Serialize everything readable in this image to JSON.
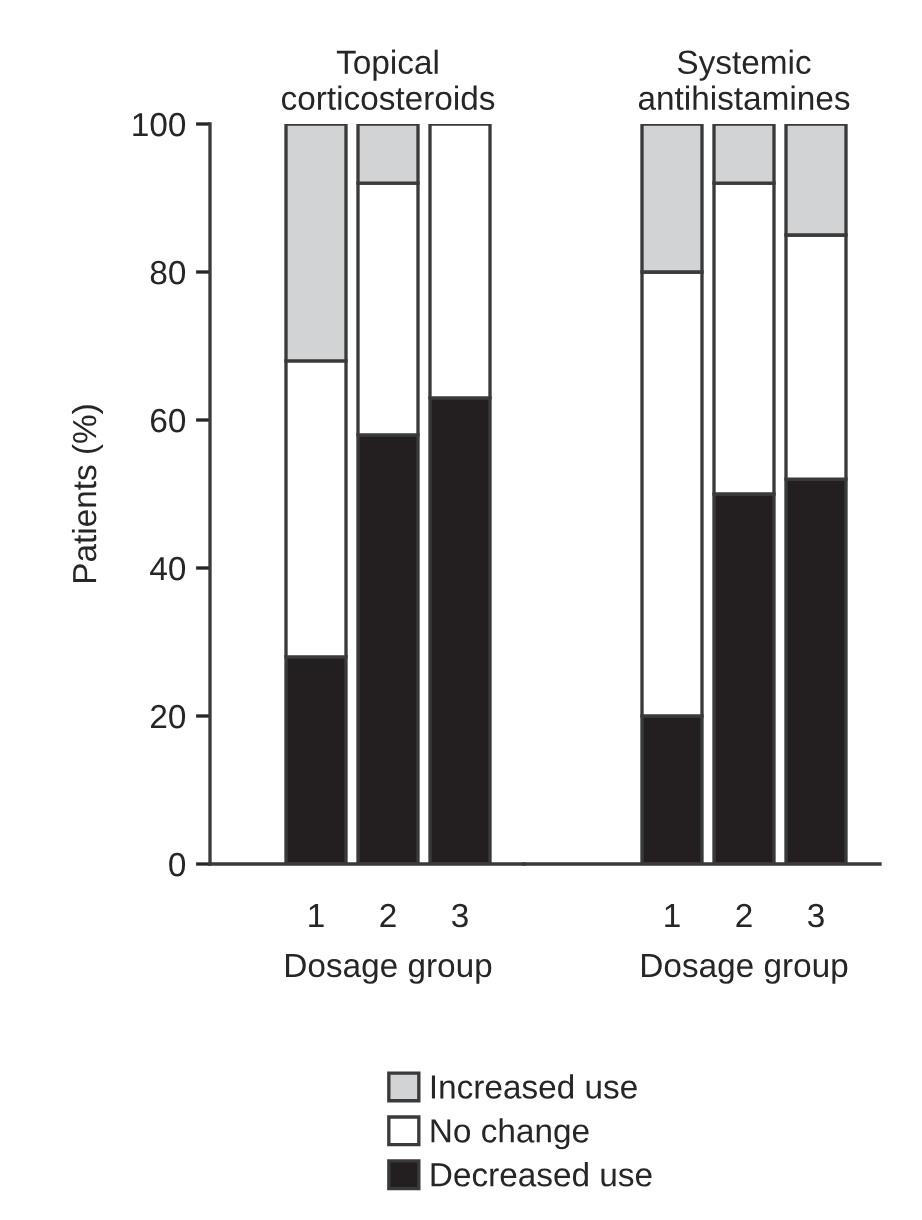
{
  "chart_data": [
    {
      "type": "bar",
      "title": "Topical corticosteroids",
      "xlabel": "Dosage group",
      "ylabel": "Patients (%)",
      "categories": [
        "1",
        "2",
        "3"
      ],
      "stacked": true,
      "ylim": [
        0,
        100
      ],
      "yticks": [
        0,
        20,
        40,
        60,
        80,
        100
      ],
      "legend": "bottom",
      "grid": false,
      "series": [
        {
          "name": "Decreased use",
          "color": "#231f20",
          "values": [
            28,
            58,
            63
          ]
        },
        {
          "name": "No change",
          "color": "#ffffff",
          "values": [
            40,
            34,
            37
          ]
        },
        {
          "name": "Increased use",
          "color": "#d1d3d4",
          "values": [
            32,
            8,
            0
          ]
        }
      ]
    },
    {
      "type": "bar",
      "title": "Systemic antihistamines",
      "xlabel": "Dosage group",
      "categories": [
        "1",
        "2",
        "3"
      ],
      "stacked": true,
      "ylim": [
        0,
        100
      ],
      "yticks": [
        0,
        20,
        40,
        60,
        80,
        100
      ],
      "tick_labels": "x",
      "legend": "bottom",
      "grid": false,
      "series": [
        {
          "name": "Decreased use",
          "color": "#231f20",
          "values": [
            20,
            50,
            52
          ]
        },
        {
          "name": "No change",
          "color": "#ffffff",
          "values": [
            60,
            42,
            33
          ]
        },
        {
          "name": "Increased use",
          "color": "#d1d3d4",
          "values": [
            20,
            8,
            15
          ]
        }
      ]
    }
  ]
}
